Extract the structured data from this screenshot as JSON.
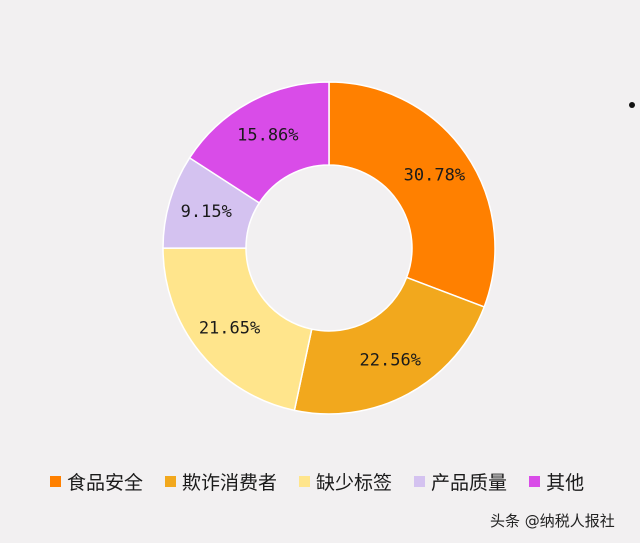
{
  "chart_data": {
    "type": "pie",
    "donut": true,
    "categories": [
      "食品安全",
      "欺诈消费者",
      "缺少标签",
      "产品质量",
      "其他"
    ],
    "values": [
      30.78,
      22.56,
      21.65,
      9.15,
      15.86
    ],
    "value_labels": [
      "30.78%",
      "22.56%",
      "21.65%",
      "9.15%",
      "15.86%"
    ],
    "colors": [
      "#ff8000",
      "#f2a81d",
      "#ffe58c",
      "#d4c2f0",
      "#d94ce8"
    ],
    "start_angle_deg": 0,
    "direction": "clockwise",
    "legend_position": "bottom"
  },
  "legend": [
    {
      "label": "食品安全",
      "color": "#ff8000"
    },
    {
      "label": "欺诈消费者",
      "color": "#f2a81d"
    },
    {
      "label": "缺少标签",
      "color": "#ffe58c"
    },
    {
      "label": "产品质量",
      "color": "#d4c2f0"
    },
    {
      "label": "其他",
      "color": "#d94ce8"
    }
  ],
  "watermark": "头条 @纳税人报社"
}
